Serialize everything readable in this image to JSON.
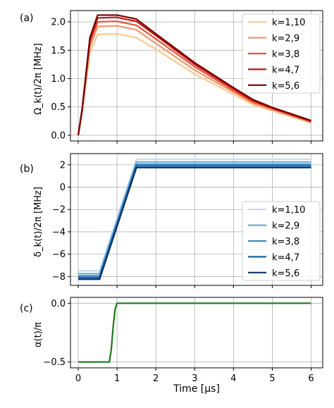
{
  "figure": {
    "xlabel": "Time [μs]",
    "xticks": [
      "0",
      "1",
      "2",
      "3",
      "4",
      "5",
      "6"
    ]
  },
  "chart_data": [
    {
      "panel_label": "(a)",
      "type": "line",
      "ylabel": "Ω_k(t)/2π [MHz]",
      "xlim": [
        -0.2,
        6.3
      ],
      "ylim": [
        -0.1,
        2.2
      ],
      "yticks": [
        "0.0",
        "0.5",
        "1.0",
        "1.5",
        "2.0"
      ],
      "grid": true,
      "legend_loc": "top-right",
      "series": [
        {
          "name": "k=1,10",
          "color": "#fdc98a",
          "points": [
            [
              0,
              0
            ],
            [
              0.1,
              0.4
            ],
            [
              0.3,
              1.45
            ],
            [
              0.5,
              1.78
            ],
            [
              1.0,
              1.79
            ],
            [
              1.5,
              1.72
            ],
            [
              2,
              1.52
            ],
            [
              3,
              1.08
            ],
            [
              4,
              0.72
            ],
            [
              4.5,
              0.54
            ],
            [
              5,
              0.43
            ],
            [
              6,
              0.22
            ]
          ]
        },
        {
          "name": "k=2,9",
          "color": "#f4956a",
          "points": [
            [
              0,
              0
            ],
            [
              0.1,
              0.42
            ],
            [
              0.3,
              1.55
            ],
            [
              0.5,
              1.92
            ],
            [
              1.0,
              1.93
            ],
            [
              1.5,
              1.86
            ],
            [
              2,
              1.62
            ],
            [
              3,
              1.15
            ],
            [
              4,
              0.76
            ],
            [
              4.5,
              0.57
            ],
            [
              5,
              0.45
            ],
            [
              6,
              0.23
            ]
          ]
        },
        {
          "name": "k=3,8",
          "color": "#e8523a",
          "points": [
            [
              0,
              0
            ],
            [
              0.1,
              0.44
            ],
            [
              0.3,
              1.63
            ],
            [
              0.5,
              2.0
            ],
            [
              1.0,
              2.01
            ],
            [
              1.5,
              1.94
            ],
            [
              2,
              1.7
            ],
            [
              3,
              1.21
            ],
            [
              4,
              0.79
            ],
            [
              4.5,
              0.59
            ],
            [
              5,
              0.47
            ],
            [
              6,
              0.24
            ]
          ]
        },
        {
          "name": "k=4,7",
          "color": "#c11612",
          "points": [
            [
              0,
              0
            ],
            [
              0.1,
              0.45
            ],
            [
              0.3,
              1.68
            ],
            [
              0.5,
              2.07
            ],
            [
              1.0,
              2.08
            ],
            [
              1.5,
              2.01
            ],
            [
              2,
              1.76
            ],
            [
              3,
              1.25
            ],
            [
              4,
              0.82
            ],
            [
              4.5,
              0.61
            ],
            [
              5,
              0.48
            ],
            [
              6,
              0.25
            ]
          ]
        },
        {
          "name": "k=5,6",
          "color": "#7a0000",
          "points": [
            [
              0,
              0
            ],
            [
              0.1,
              0.46
            ],
            [
              0.3,
              1.72
            ],
            [
              0.5,
              2.12
            ],
            [
              1.0,
              2.12
            ],
            [
              1.5,
              2.05
            ],
            [
              2,
              1.79
            ],
            [
              3,
              1.28
            ],
            [
              4,
              0.84
            ],
            [
              4.5,
              0.63
            ],
            [
              5,
              0.49
            ],
            [
              6,
              0.26
            ]
          ]
        }
      ]
    },
    {
      "panel_label": "(b)",
      "type": "line",
      "ylabel": "δ_k(t)/2π [MHz]",
      "xlim": [
        -0.2,
        6.3
      ],
      "ylim": [
        -8.8,
        3.0
      ],
      "yticks": [
        "2",
        "0",
        "−2",
        "−4",
        "−6",
        "−8"
      ],
      "ytick_values": [
        2,
        0,
        -2,
        -4,
        -6,
        -8
      ],
      "grid": true,
      "legend_loc": "lower-right",
      "series": [
        {
          "name": "k=1,10",
          "color": "#c6dbef",
          "points": [
            [
              0,
              -7.5
            ],
            [
              0.55,
              -7.5
            ],
            [
              1.5,
              2.5
            ],
            [
              6,
              2.5
            ]
          ]
        },
        {
          "name": "k=2,9",
          "color": "#6aaed6",
          "points": [
            [
              0,
              -7.75
            ],
            [
              0.55,
              -7.75
            ],
            [
              1.5,
              2.25
            ],
            [
              6,
              2.25
            ]
          ]
        },
        {
          "name": "k=3,8",
          "color": "#3b86c2",
          "points": [
            [
              0,
              -7.95
            ],
            [
              0.55,
              -7.95
            ],
            [
              1.5,
              2.05
            ],
            [
              6,
              2.05
            ]
          ]
        },
        {
          "name": "k=4,7",
          "color": "#1565a8",
          "points": [
            [
              0,
              -8.1
            ],
            [
              0.55,
              -8.1
            ],
            [
              1.5,
              1.9
            ],
            [
              6,
              1.9
            ]
          ]
        },
        {
          "name": "k=5,6",
          "color": "#08306b",
          "points": [
            [
              0,
              -8.25
            ],
            [
              0.55,
              -8.25
            ],
            [
              1.5,
              1.75
            ],
            [
              6,
              1.75
            ]
          ]
        }
      ]
    },
    {
      "panel_label": "(c)",
      "type": "line",
      "ylabel": "α(t)/π",
      "xlim": [
        -0.2,
        6.3
      ],
      "ylim": [
        -0.55,
        0.05
      ],
      "yticks": [
        "0.0",
        "−0.5"
      ],
      "ytick_values": [
        0,
        -0.5
      ],
      "grid": true,
      "series": [
        {
          "name": "",
          "color": "#1a7a1a",
          "points": [
            [
              0,
              -0.5
            ],
            [
              0.8,
              -0.5
            ],
            [
              0.85,
              -0.4
            ],
            [
              0.9,
              -0.2
            ],
            [
              0.95,
              -0.05
            ],
            [
              1.0,
              0
            ],
            [
              6,
              0
            ]
          ]
        }
      ]
    }
  ]
}
